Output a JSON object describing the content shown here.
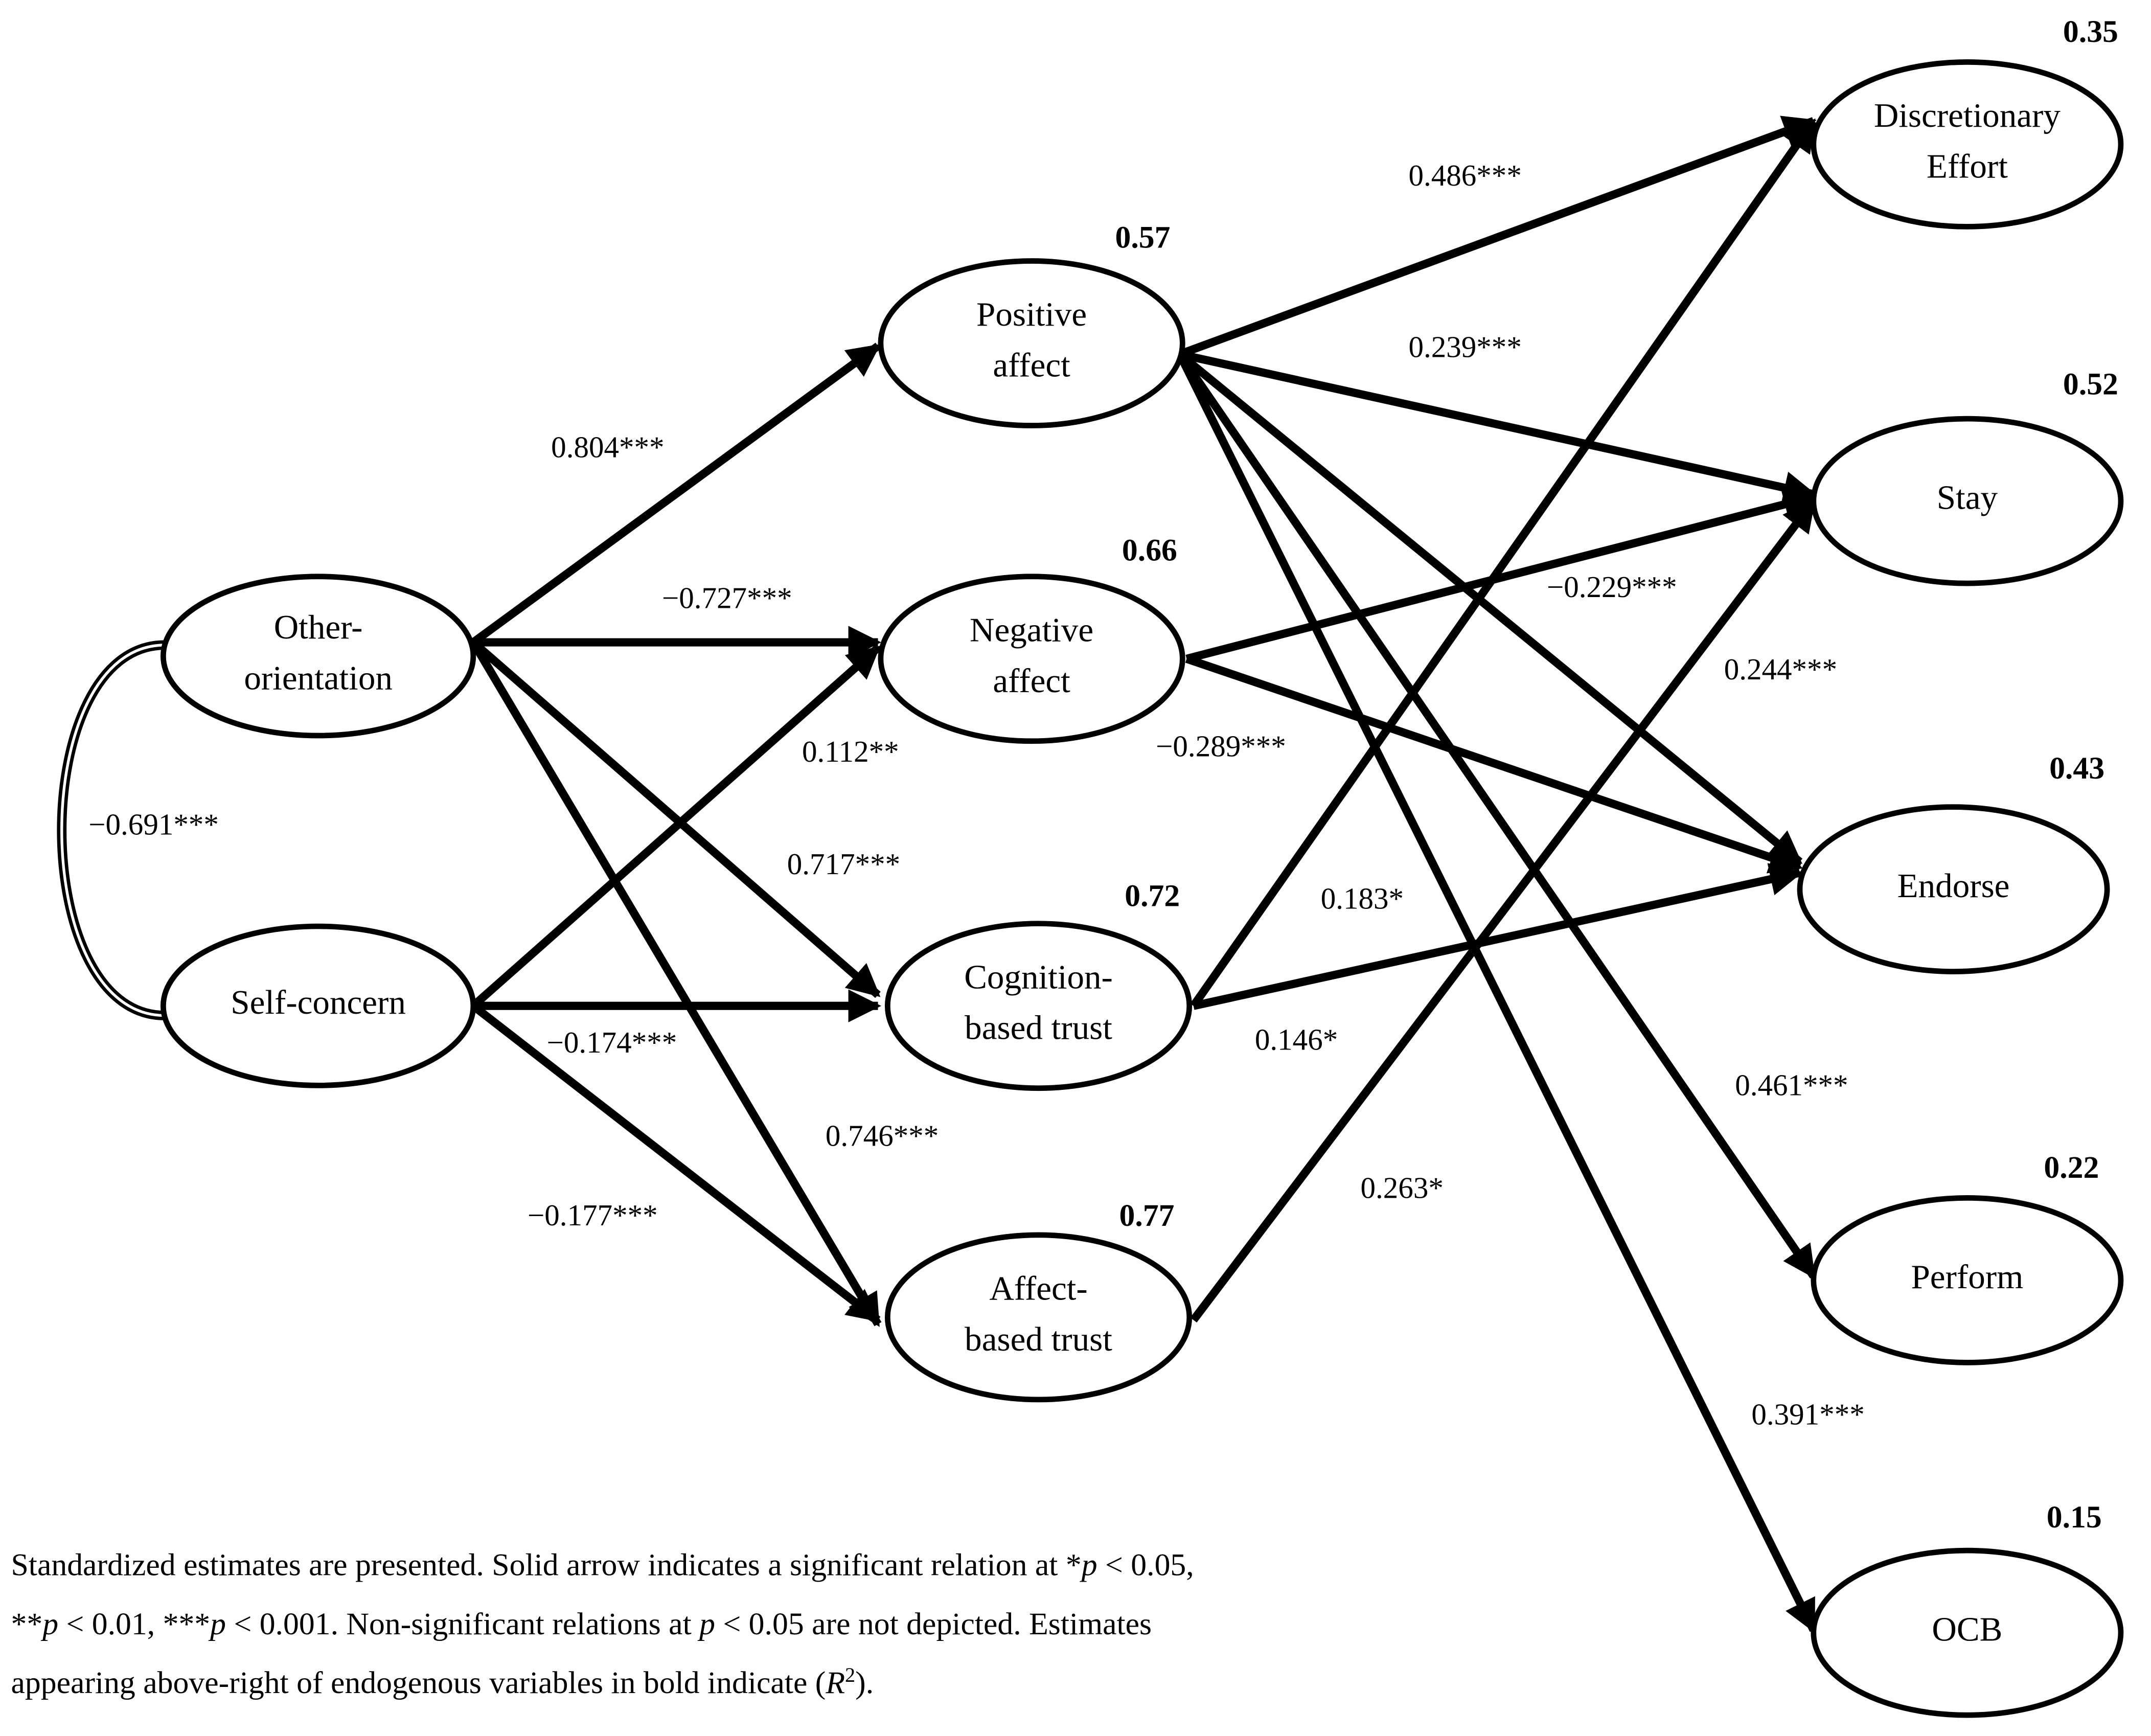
{
  "nodes": [
    {
      "label": [
        "Other-",
        "orientation"
      ]
    },
    {
      "label": [
        "Self-concern"
      ]
    },
    {
      "label": [
        "Positive",
        "affect"
      ],
      "r2": 0.57
    },
    {
      "label": [
        "Negative",
        "affect"
      ],
      "r2": 0.66
    },
    {
      "label": [
        "Cognition-",
        "based trust"
      ],
      "r2": 0.72
    },
    {
      "label": [
        "Affect-",
        "based trust"
      ],
      "r2": 0.77
    },
    {
      "label": [
        "Discretionary",
        "Effort"
      ],
      "r2": 0.35
    },
    {
      "label": [
        "Stay"
      ],
      "r2": 0.52
    },
    {
      "label": [
        "Endorse"
      ],
      "r2": 0.43
    },
    {
      "label": [
        "Perform"
      ],
      "r2": 0.22
    },
    {
      "label": [
        "OCB"
      ],
      "r2": 0.15
    }
  ],
  "correlation": "−0.691***",
  "edges": [
    "0.804***",
    "−0.727***",
    "0.717***",
    "0.746***",
    "0.112**",
    "−0.174***",
    "−0.177***",
    "0.486***",
    "0.239***",
    "0.244***",
    "0.461***",
    "0.391***",
    "−0.229***",
    "−0.289***",
    "0.183*",
    "0.146*",
    "0.263*"
  ],
  "footnote": [
    [
      {
        "text": "Standardized estimates are presented. Solid arrow indicates a significant relation at *"
      },
      {
        "text": "p",
        "italic": true
      },
      {
        "text": " < 0.05,"
      }
    ],
    [
      {
        "text": "**"
      },
      {
        "text": "p",
        "italic": true
      },
      {
        "text": " < 0.01, ***"
      },
      {
        "text": "p",
        "italic": true
      },
      {
        "text": " < 0.001. Non-significant relations at "
      },
      {
        "text": "p",
        "italic": true
      },
      {
        "text": " < 0.05 are not depicted. Estimates"
      }
    ],
    [
      {
        "text": "appearing above-right of endogenous variables in bold indicate ("
      },
      {
        "text": "R",
        "italic": true
      },
      {
        "text": "2",
        "sup": true
      },
      {
        "text": ")."
      }
    ]
  ]
}
